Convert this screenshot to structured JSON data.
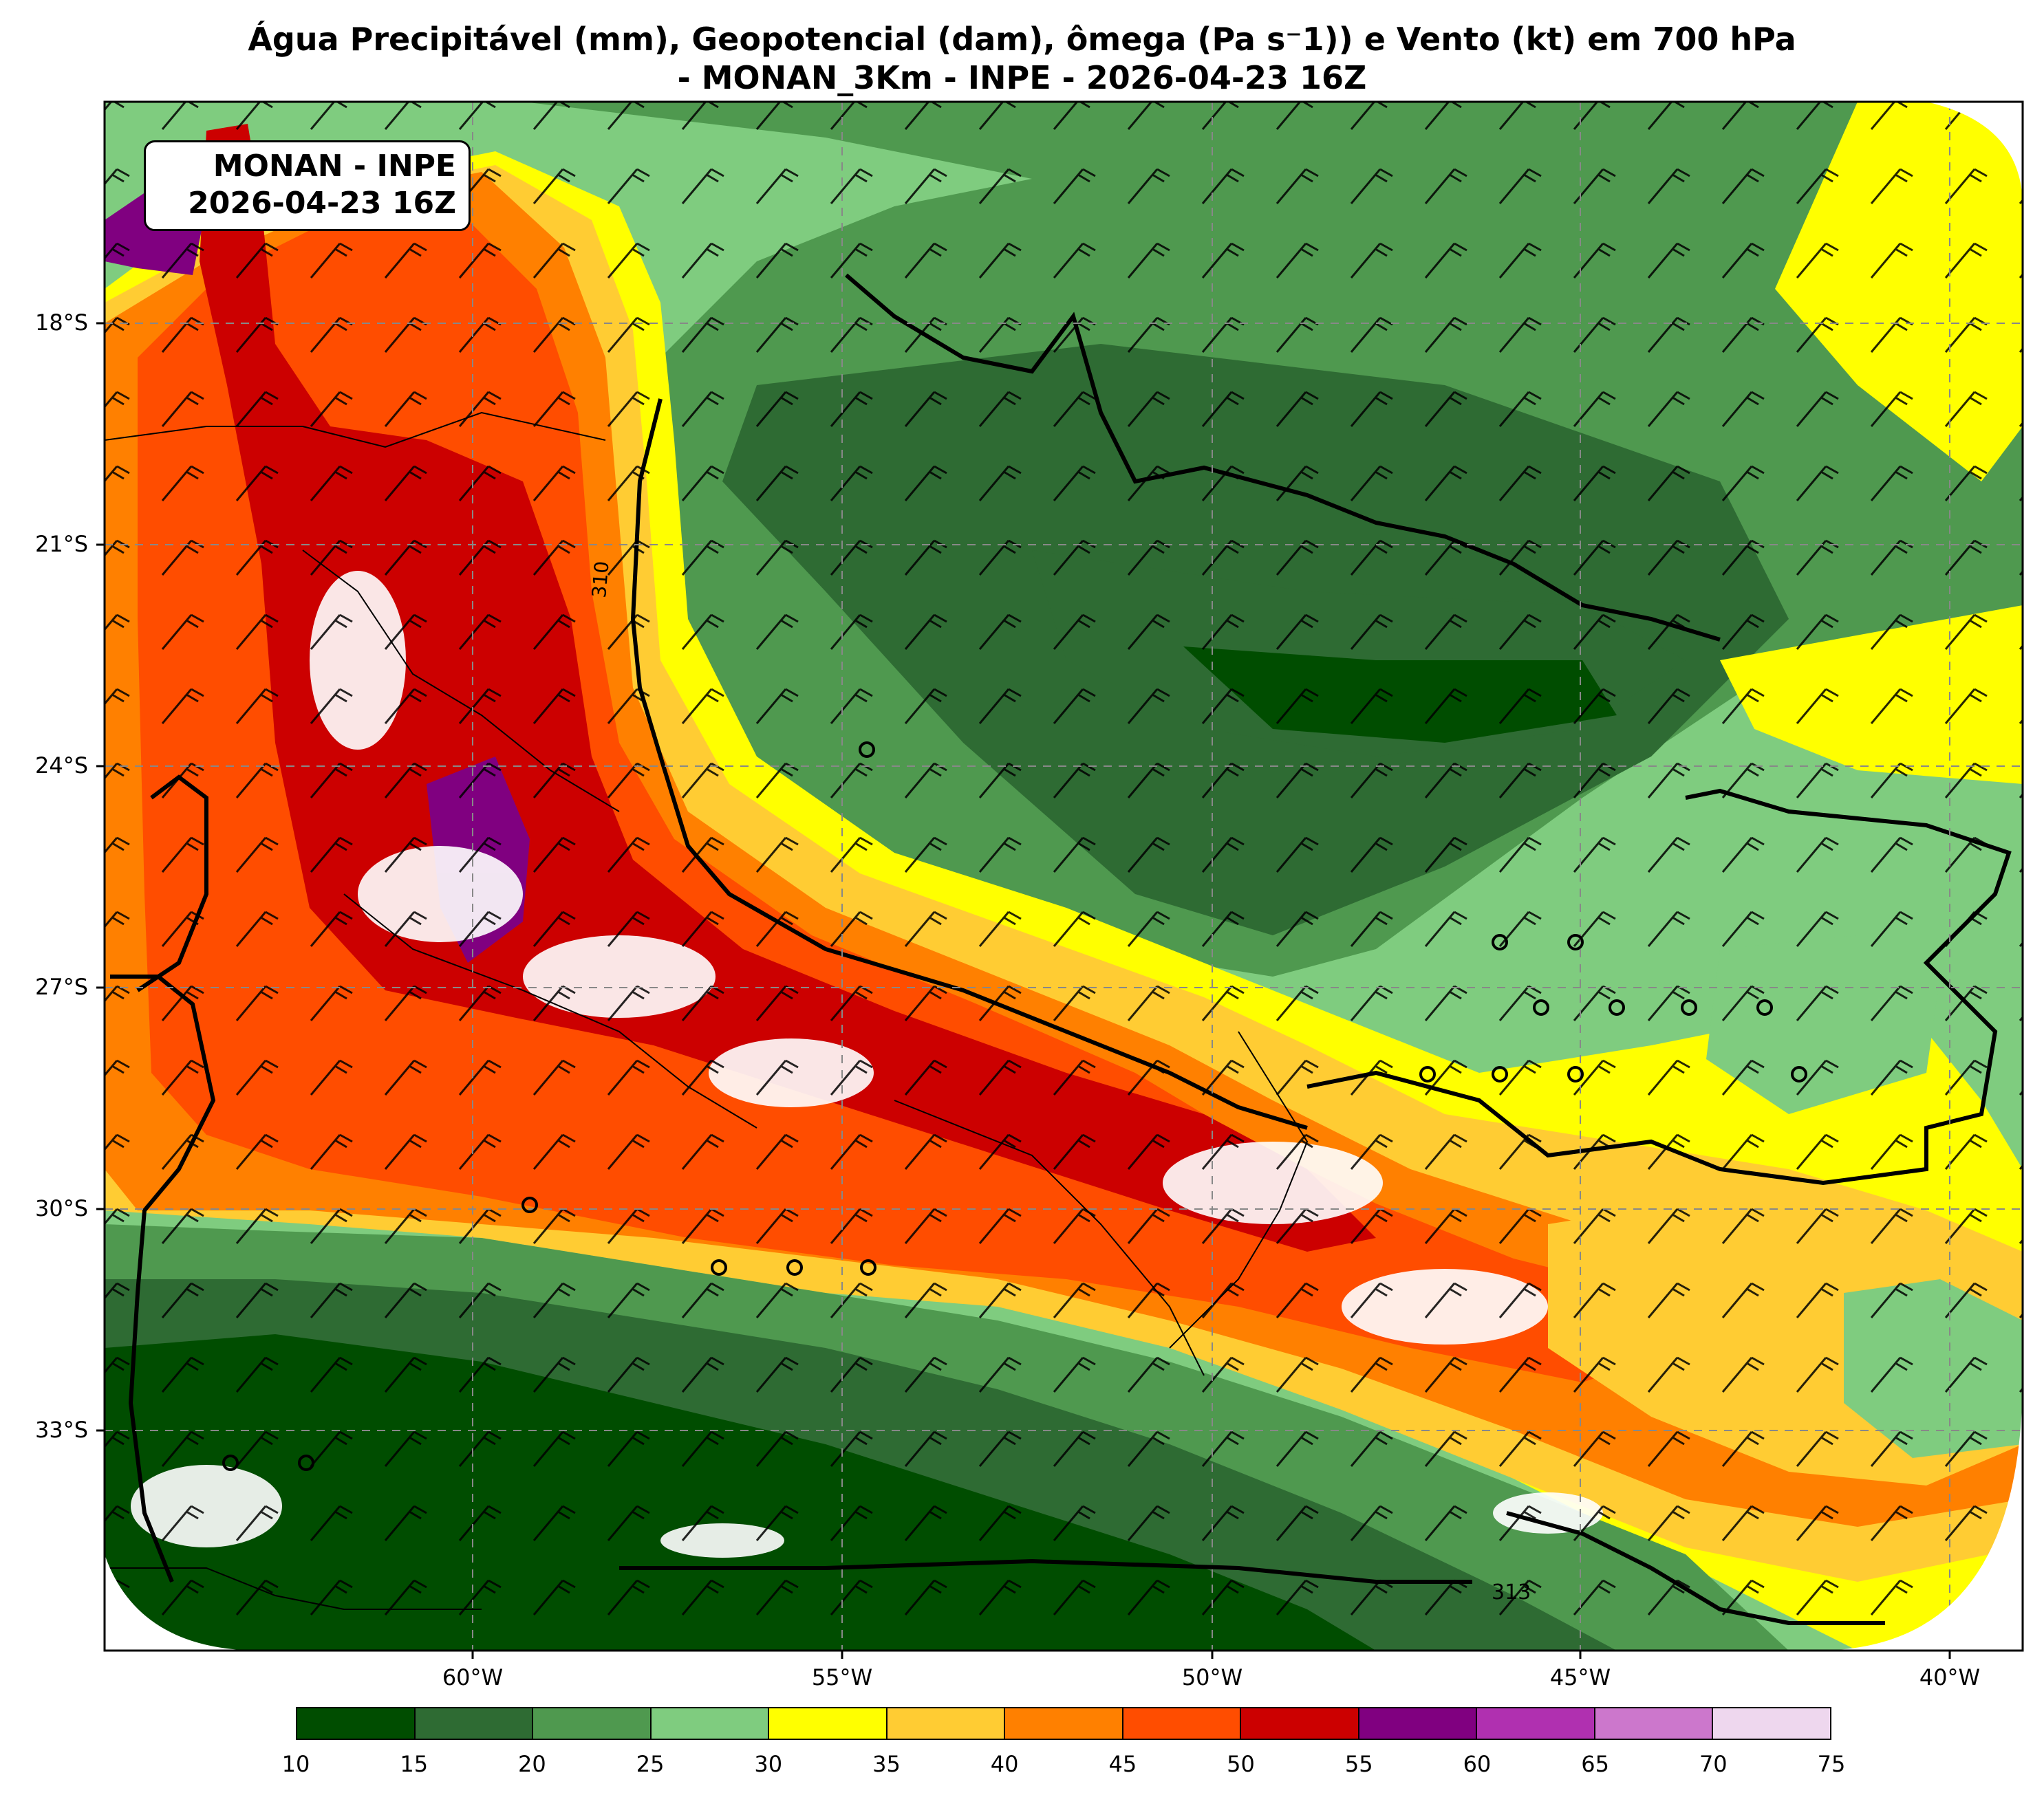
{
  "title": {
    "line1": "Água Precipitável (mm), Geopotencial (dam), ômega (Pa s⁻1)) e Vento (kt) em 700 hPa",
    "line2": "- MONAN_3Km - INPE - 2026-04-23 16Z"
  },
  "info_box": {
    "line1": "MONAN - INPE",
    "line2": "2026-04-23 16Z"
  },
  "axes": {
    "lat_labels": [
      "18°S",
      "21°S",
      "24°S",
      "27°S",
      "30°S",
      "33°S"
    ],
    "lon_labels": [
      "60°W",
      "55°W",
      "50°W",
      "45°W",
      "40°W"
    ]
  },
  "contour_labels": [
    "310",
    "313"
  ],
  "colorbar": {
    "ticks": [
      "10",
      "15",
      "20",
      "25",
      "30",
      "35",
      "40",
      "45",
      "50",
      "55",
      "60",
      "65",
      "70",
      "75"
    ],
    "colors": [
      "#004d00",
      "#2e6b33",
      "#4f994f",
      "#7fcc7f",
      "#ffff00",
      "#ffcc33",
      "#ff8000",
      "#ff4d00",
      "#cc0000",
      "#800080",
      "#b030b0",
      "#cc77cc",
      "#eed7ee"
    ]
  },
  "colors": {
    "dark_green": "#004d00",
    "mid_green": "#2e6b33",
    "green": "#4f994f",
    "light_green": "#7fcc7f",
    "yellow": "#ffff00",
    "light_orange": "#ffcc33",
    "orange": "#ff8000",
    "red_orange": "#ff4d00",
    "red": "#cc0000",
    "purple": "#800080"
  }
}
